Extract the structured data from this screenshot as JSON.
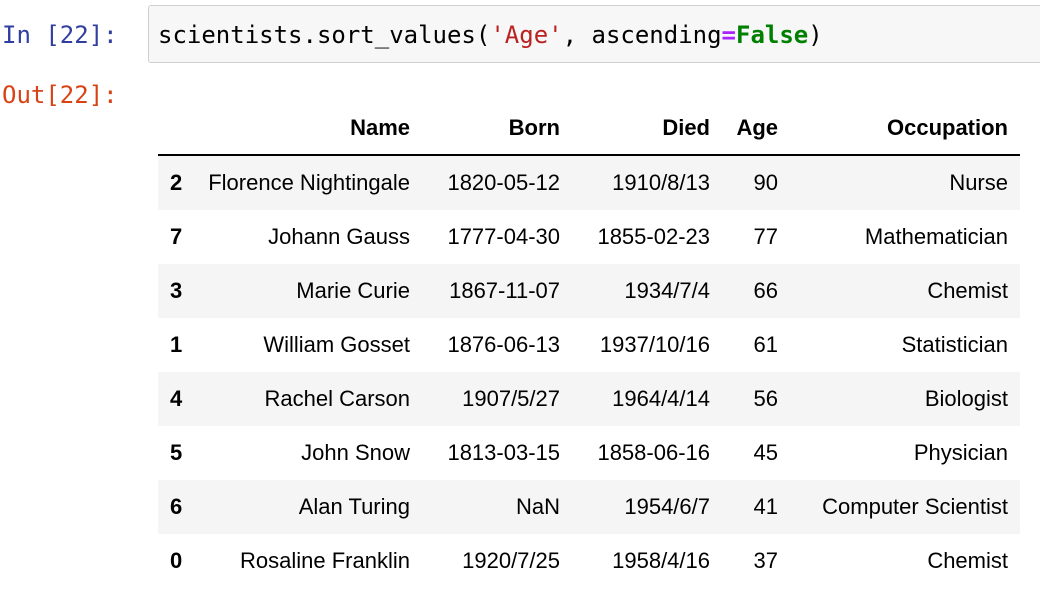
{
  "input_cell": {
    "prompt": "In [22]:",
    "code": {
      "part1": "scientists.sort_values(",
      "string": "'Age'",
      "part2": ", ascending",
      "operator": "=",
      "keyword": "False",
      "part3": ")"
    }
  },
  "output_cell": {
    "prompt": "Out[22]:",
    "table": {
      "columns": [
        "Name",
        "Born",
        "Died",
        "Age",
        "Occupation"
      ],
      "rows": [
        {
          "index": "2",
          "name": "Florence Nightingale",
          "born": "1820-05-12",
          "died": "1910/8/13",
          "age": "90",
          "occupation": "Nurse"
        },
        {
          "index": "7",
          "name": "Johann Gauss",
          "born": "1777-04-30",
          "died": "1855-02-23",
          "age": "77",
          "occupation": "Mathematician"
        },
        {
          "index": "3",
          "name": "Marie Curie",
          "born": "1867-11-07",
          "died": "1934/7/4",
          "age": "66",
          "occupation": "Chemist"
        },
        {
          "index": "1",
          "name": "William Gosset",
          "born": "1876-06-13",
          "died": "1937/10/16",
          "age": "61",
          "occupation": "Statistician"
        },
        {
          "index": "4",
          "name": "Rachel Carson",
          "born": "1907/5/27",
          "died": "1964/4/14",
          "age": "56",
          "occupation": "Biologist"
        },
        {
          "index": "5",
          "name": "John Snow",
          "born": "1813-03-15",
          "died": "1858-06-16",
          "age": "45",
          "occupation": "Physician"
        },
        {
          "index": "6",
          "name": "Alan Turing",
          "born": "NaN",
          "died": "1954/6/7",
          "age": "41",
          "occupation": "Computer Scientist"
        },
        {
          "index": "0",
          "name": "Rosaline Franklin",
          "born": "1920/7/25",
          "died": "1958/4/16",
          "age": "37",
          "occupation": "Chemist"
        }
      ]
    }
  },
  "colors": {
    "in_prompt": "#303f9f",
    "out_prompt": "#d84315",
    "string": "#ba2121",
    "operator": "#aa22ff",
    "keyword": "#008000",
    "cell_background": "#f7f7f7",
    "stripe": "#f5f5f5"
  }
}
